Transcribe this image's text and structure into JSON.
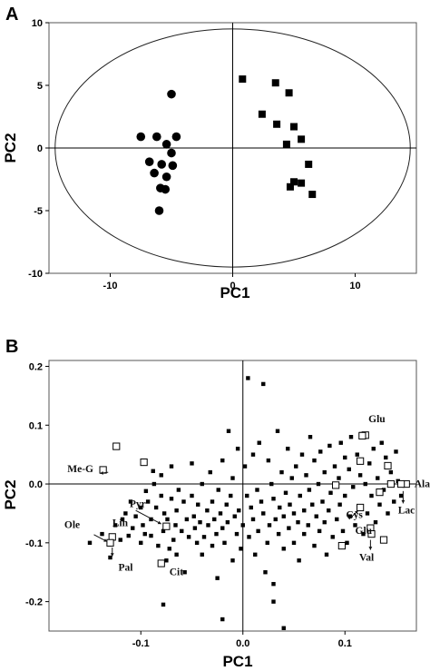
{
  "chart_data": [
    {
      "panel": "A",
      "type": "scatter",
      "xlabel": "PC1",
      "ylabel": "PC2",
      "xlim": [
        -15,
        15
      ],
      "ylim": [
        -10,
        10
      ],
      "xticks": [
        -10,
        0,
        10
      ],
      "yticks": [
        10,
        5,
        0,
        -5,
        -10
      ],
      "grid": false,
      "ellipse": {
        "cx": 0,
        "cy": 0,
        "rx": 14.5,
        "ry": 9.5
      },
      "series": [
        {
          "marker": "circle",
          "color": "#000000",
          "points": [
            [
              -5.0,
              4.3
            ],
            [
              -7.5,
              0.9
            ],
            [
              -6.2,
              0.9
            ],
            [
              -4.6,
              0.9
            ],
            [
              -5.4,
              0.3
            ],
            [
              -5.0,
              -0.4
            ],
            [
              -6.8,
              -1.1
            ],
            [
              -5.8,
              -1.3
            ],
            [
              -4.9,
              -1.4
            ],
            [
              -6.4,
              -2.0
            ],
            [
              -5.4,
              -2.3
            ],
            [
              -5.9,
              -3.2
            ],
            [
              -5.5,
              -3.3
            ],
            [
              -6.0,
              -5.0
            ]
          ]
        },
        {
          "marker": "square",
          "color": "#000000",
          "points": [
            [
              0.8,
              5.5
            ],
            [
              3.5,
              5.2
            ],
            [
              4.6,
              4.4
            ],
            [
              2.4,
              2.7
            ],
            [
              3.6,
              1.9
            ],
            [
              5.0,
              1.7
            ],
            [
              5.6,
              0.7
            ],
            [
              4.4,
              0.3
            ],
            [
              6.2,
              -1.3
            ],
            [
              5.0,
              -2.7
            ],
            [
              4.7,
              -3.1
            ],
            [
              5.6,
              -2.8
            ],
            [
              6.5,
              -3.7
            ]
          ]
        }
      ]
    },
    {
      "panel": "B",
      "type": "scatter",
      "xlabel": "PC1",
      "ylabel": "PC2",
      "xlim": [
        -0.19,
        0.17
      ],
      "ylim": [
        -0.25,
        0.21
      ],
      "xticks": [
        -0.1,
        0.0,
        0.1
      ],
      "xtick_labels": [
        "-0.1",
        "0.0",
        "0.1"
      ],
      "yticks": [
        0.2,
        0.1,
        0.0,
        -0.1,
        -0.2
      ],
      "ytick_labels": [
        "0.2",
        "0.1",
        "0.0",
        "-0.1",
        "-0.2"
      ],
      "grid": false,
      "series": [
        {
          "marker": "square-filled-small",
          "color": "#000000",
          "points": [
            [
              -0.15,
              -0.1
            ],
            [
              -0.138,
              -0.085
            ],
            [
              -0.13,
              -0.125
            ],
            [
              -0.125,
              -0.07
            ],
            [
              -0.12,
              -0.095
            ],
            [
              -0.118,
              -0.06
            ],
            [
              -0.115,
              -0.05
            ],
            [
              -0.112,
              -0.088
            ],
            [
              -0.11,
              -0.03
            ],
            [
              -0.108,
              -0.075
            ],
            [
              -0.105,
              -0.055
            ],
            [
              -0.1,
              -0.1
            ],
            [
              -0.1,
              -0.04
            ],
            [
              -0.098,
              -0.07
            ],
            [
              -0.096,
              -0.085
            ],
            [
              -0.095,
              -0.012
            ],
            [
              -0.093,
              -0.03
            ],
            [
              -0.09,
              -0.06
            ],
            [
              -0.09,
              -0.088
            ],
            [
              -0.088,
              0.022
            ],
            [
              -0.087,
              0.0
            ],
            [
              -0.085,
              -0.04
            ],
            [
              -0.083,
              -0.105
            ],
            [
              -0.08,
              0.015
            ],
            [
              -0.08,
              -0.02
            ],
            [
              -0.078,
              -0.08
            ],
            [
              -0.077,
              -0.05
            ],
            [
              -0.075,
              -0.13
            ],
            [
              -0.074,
              -0.06
            ],
            [
              -0.072,
              -0.11
            ],
            [
              -0.07,
              0.03
            ],
            [
              -0.07,
              -0.025
            ],
            [
              -0.068,
              -0.095
            ],
            [
              -0.066,
              -0.07
            ],
            [
              -0.065,
              -0.045
            ],
            [
              -0.065,
              -0.12
            ],
            [
              -0.063,
              -0.01
            ],
            [
              -0.06,
              -0.08
            ],
            [
              -0.058,
              -0.03
            ],
            [
              -0.057,
              -0.15
            ],
            [
              -0.055,
              -0.06
            ],
            [
              -0.053,
              -0.09
            ],
            [
              -0.05,
              -0.02
            ],
            [
              -0.05,
              0.035
            ],
            [
              -0.048,
              -0.055
            ],
            [
              -0.047,
              -0.075
            ],
            [
              -0.045,
              -0.1
            ],
            [
              -0.044,
              -0.035
            ],
            [
              -0.042,
              -0.065
            ],
            [
              -0.04,
              0.0
            ],
            [
              -0.04,
              -0.12
            ],
            [
              -0.038,
              -0.09
            ],
            [
              -0.035,
              -0.045
            ],
            [
              -0.034,
              -0.07
            ],
            [
              -0.032,
              0.02
            ],
            [
              -0.03,
              -0.03
            ],
            [
              -0.03,
              -0.105
            ],
            [
              -0.028,
              -0.06
            ],
            [
              -0.026,
              -0.085
            ],
            [
              -0.025,
              -0.16
            ],
            [
              -0.024,
              -0.01
            ],
            [
              -0.022,
              -0.05
            ],
            [
              -0.02,
              0.04
            ],
            [
              -0.02,
              -0.075
            ],
            [
              -0.018,
              -0.1
            ],
            [
              -0.016,
              -0.035
            ],
            [
              -0.015,
              -0.065
            ],
            [
              -0.014,
              0.09
            ],
            [
              -0.012,
              -0.02
            ],
            [
              -0.01,
              -0.13
            ],
            [
              -0.01,
              0.01
            ],
            [
              -0.008,
              -0.055
            ],
            [
              -0.006,
              -0.085
            ],
            [
              -0.005,
              0.06
            ],
            [
              -0.004,
              -0.045
            ],
            [
              -0.002,
              -0.11
            ],
            [
              0.0,
              -0.07
            ],
            [
              0.002,
              0.03
            ],
            [
              0.004,
              -0.02
            ],
            [
              0.005,
              0.18
            ],
            [
              0.006,
              -0.09
            ],
            [
              0.008,
              -0.04
            ],
            [
              0.01,
              0.05
            ],
            [
              0.01,
              -0.06
            ],
            [
              0.012,
              -0.12
            ],
            [
              0.014,
              -0.01
            ],
            [
              0.015,
              -0.08
            ],
            [
              0.016,
              0.07
            ],
            [
              0.018,
              -0.03
            ],
            [
              0.02,
              0.17
            ],
            [
              0.02,
              -0.05
            ],
            [
              0.022,
              -0.15
            ],
            [
              0.024,
              -0.1
            ],
            [
              0.025,
              0.04
            ],
            [
              0.026,
              -0.07
            ],
            [
              0.028,
              0.0
            ],
            [
              0.03,
              -0.025
            ],
            [
              0.03,
              -0.17
            ],
            [
              0.032,
              -0.06
            ],
            [
              0.034,
              0.09
            ],
            [
              0.035,
              -0.085
            ],
            [
              0.036,
              -0.04
            ],
            [
              0.038,
              0.02
            ],
            [
              0.04,
              -0.11
            ],
            [
              0.04,
              -0.055
            ],
            [
              0.042,
              -0.015
            ],
            [
              0.044,
              0.06
            ],
            [
              0.045,
              -0.075
            ],
            [
              0.046,
              -0.035
            ],
            [
              0.048,
              0.01
            ],
            [
              0.05,
              -0.1
            ],
            [
              0.05,
              -0.05
            ],
            [
              0.052,
              0.03
            ],
            [
              0.054,
              -0.065
            ],
            [
              0.055,
              -0.13
            ],
            [
              0.056,
              -0.02
            ],
            [
              0.058,
              0.05
            ],
            [
              0.06,
              -0.045
            ],
            [
              0.06,
              -0.085
            ],
            [
              0.062,
              0.015
            ],
            [
              0.064,
              -0.07
            ],
            [
              0.065,
              -0.01
            ],
            [
              0.066,
              0.08
            ],
            [
              0.068,
              -0.035
            ],
            [
              0.07,
              -0.105
            ],
            [
              0.07,
              0.04
            ],
            [
              0.072,
              -0.055
            ],
            [
              0.074,
              0.0
            ],
            [
              0.075,
              -0.08
            ],
            [
              0.076,
              0.055
            ],
            [
              0.078,
              -0.03
            ],
            [
              0.08,
              -0.065
            ],
            [
              0.08,
              0.02
            ],
            [
              0.082,
              -0.12
            ],
            [
              0.084,
              -0.045
            ],
            [
              0.085,
              0.065
            ],
            [
              0.086,
              -0.015
            ],
            [
              0.088,
              -0.09
            ],
            [
              0.09,
              0.03
            ],
            [
              0.092,
              -0.06
            ],
            [
              0.094,
              0.01
            ],
            [
              0.095,
              -0.035
            ],
            [
              0.096,
              0.07
            ],
            [
              0.098,
              -0.08
            ],
            [
              0.1,
              0.045
            ],
            [
              0.1,
              -0.02
            ],
            [
              0.102,
              -0.1
            ],
            [
              0.104,
              0.025
            ],
            [
              0.105,
              -0.055
            ],
            [
              0.106,
              0.08
            ],
            [
              0.108,
              -0.005
            ],
            [
              0.11,
              -0.07
            ],
            [
              0.112,
              0.05
            ],
            [
              0.114,
              -0.04
            ],
            [
              0.115,
              0.015
            ],
            [
              0.116,
              0.085
            ],
            [
              0.118,
              -0.085
            ],
            [
              0.12,
              0.0
            ],
            [
              0.122,
              -0.05
            ],
            [
              0.124,
              0.035
            ],
            [
              0.126,
              -0.02
            ],
            [
              0.128,
              0.06
            ],
            [
              0.13,
              -0.065
            ],
            [
              0.132,
              0.01
            ],
            [
              0.134,
              -0.035
            ],
            [
              0.136,
              0.07
            ],
            [
              0.138,
              -0.01
            ],
            [
              0.14,
              0.045
            ],
            [
              0.142,
              -0.05
            ],
            [
              0.145,
              0.02
            ],
            [
              0.148,
              -0.03
            ],
            [
              0.15,
              0.055
            ],
            [
              0.152,
              0.005
            ],
            [
              0.155,
              -0.02
            ],
            [
              -0.078,
              -0.205
            ],
            [
              0.04,
              -0.245
            ],
            [
              0.03,
              -0.2
            ],
            [
              -0.02,
              -0.23
            ]
          ]
        },
        {
          "marker": "square-open",
          "color": "#000000",
          "points": [
            [
              -0.137,
              0.024
            ],
            [
              -0.124,
              0.064
            ],
            [
              -0.097,
              0.037
            ],
            [
              -0.128,
              -0.09
            ],
            [
              -0.13,
              -0.1
            ],
            [
              -0.075,
              -0.072
            ],
            [
              -0.08,
              -0.135
            ],
            [
              0.091,
              -0.002
            ],
            [
              0.12,
              0.083
            ],
            [
              0.117,
              0.082
            ],
            [
              0.115,
              0.039
            ],
            [
              0.142,
              0.031
            ],
            [
              0.134,
              -0.014
            ],
            [
              0.145,
              0.0
            ],
            [
              0.16,
              0.0
            ],
            [
              0.155,
              0.0
            ],
            [
              0.115,
              -0.04
            ],
            [
              0.125,
              -0.075
            ],
            [
              0.138,
              -0.095
            ],
            [
              0.097,
              -0.105
            ],
            [
              0.126,
              -0.085
            ]
          ]
        }
      ],
      "annotations": [
        {
          "text": "Glu",
          "x": 0.123,
          "y": 0.105
        },
        {
          "text": "Me-G",
          "x": -0.172,
          "y": 0.02
        },
        {
          "text": "Ala",
          "x": 0.168,
          "y": -0.005
        },
        {
          "text": "Lac",
          "x": 0.152,
          "y": -0.05
        },
        {
          "text": "Pyr",
          "x": -0.111,
          "y": -0.039
        },
        {
          "text": "Cys",
          "x": 0.101,
          "y": -0.058
        },
        {
          "text": "Lin",
          "x": -0.128,
          "y": -0.072
        },
        {
          "text": "Ole",
          "x": -0.175,
          "y": -0.075
        },
        {
          "text": "Glu",
          "x": 0.11,
          "y": -0.085
        },
        {
          "text": "Pal",
          "x": -0.122,
          "y": -0.147
        },
        {
          "text": "Cit",
          "x": -0.072,
          "y": -0.155
        },
        {
          "text": "Val",
          "x": 0.114,
          "y": -0.13
        }
      ]
    }
  ],
  "panels": {
    "A": {
      "letter": "A"
    },
    "B": {
      "letter": "B"
    }
  }
}
